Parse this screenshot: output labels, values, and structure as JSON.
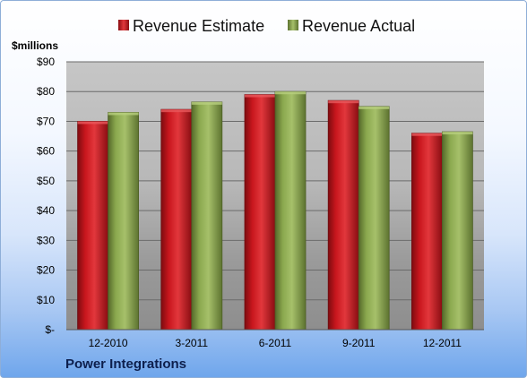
{
  "chart_data": {
    "type": "bar",
    "categories": [
      "12-2010",
      "3-2011",
      "6-2011",
      "9-2011",
      "12-2011"
    ],
    "series": [
      {
        "name": "Revenue Estimate",
        "values": [
          70,
          74,
          79,
          77,
          66
        ],
        "color": "#c8161d"
      },
      {
        "name": "Revenue Actual",
        "values": [
          73,
          76.5,
          80,
          75,
          66.5
        ],
        "color": "#8aa84e"
      }
    ],
    "unit_label": "$millions",
    "ylim": [
      0,
      90
    ],
    "ytick_values": [
      0,
      10,
      20,
      30,
      40,
      50,
      60,
      70,
      80,
      90
    ],
    "ytick_labels": [
      "$-",
      "$10",
      "$20",
      "$30",
      "$40",
      "$50",
      "$60",
      "$70",
      "$80",
      "$90"
    ],
    "grid": true,
    "legend_position": "top",
    "footer": "Power Integrations"
  }
}
